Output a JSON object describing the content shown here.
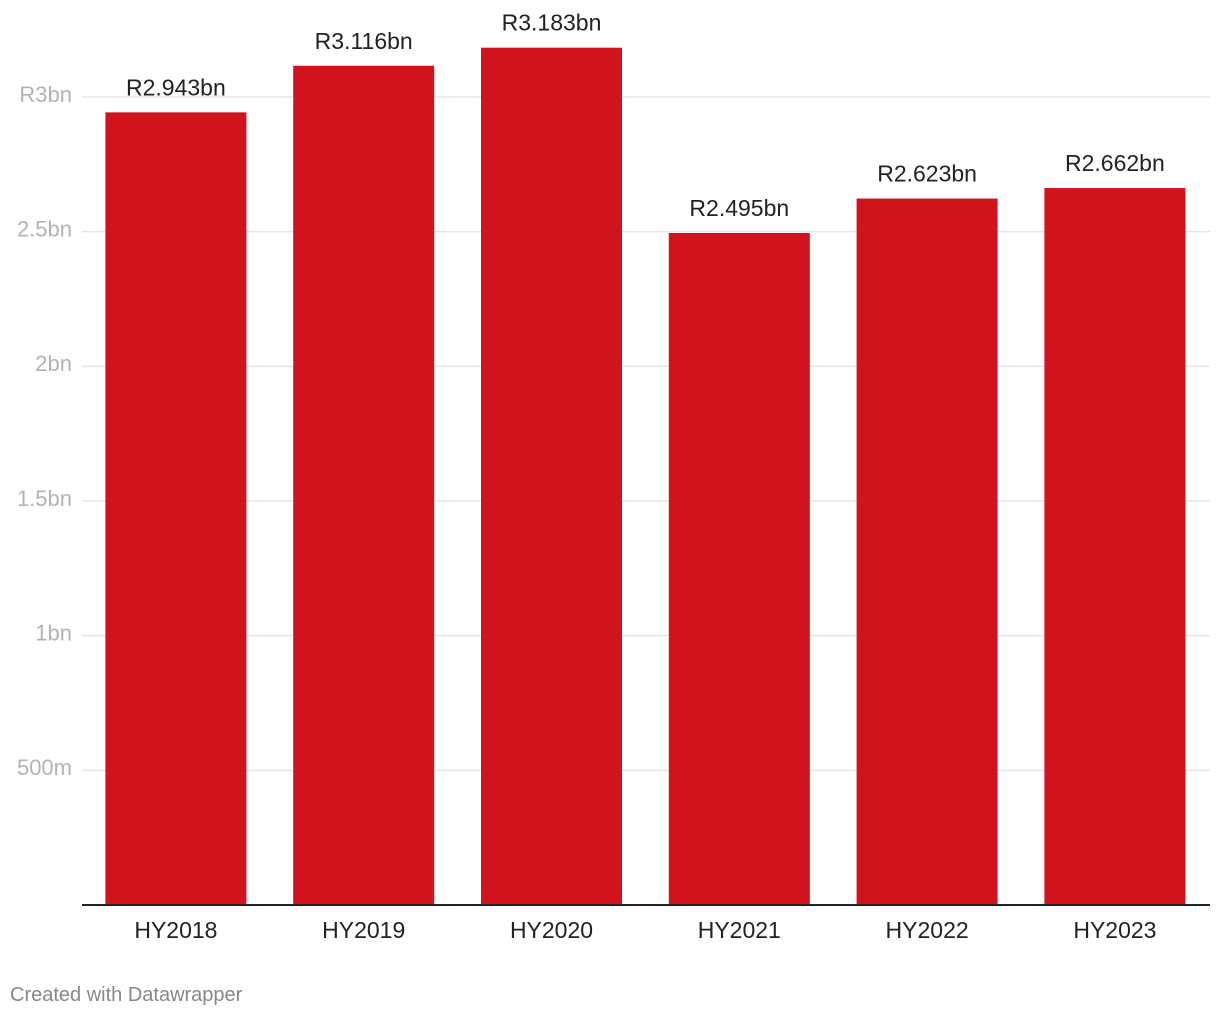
{
  "chart_data": {
    "type": "bar",
    "categories": [
      "HY2018",
      "HY2019",
      "HY2020",
      "HY2021",
      "HY2022",
      "HY2023"
    ],
    "values": [
      2943000000,
      3116000000,
      3183000000,
      2495000000,
      2623000000,
      2662000000
    ],
    "data_labels": [
      "R2.943bn",
      "R3.116bn",
      "R3.183bn",
      "R2.495bn",
      "R2.623bn",
      "R2.662bn"
    ],
    "y_ticks": [
      500000000,
      1000000000,
      1500000000,
      2000000000,
      2500000000,
      3000000000
    ],
    "y_tick_labels": [
      "500m",
      "1bn",
      "1.5bn",
      "2bn",
      "2.5bn",
      "R3bn"
    ],
    "ylim": [
      0,
      3000000000
    ],
    "grid": true,
    "legend": "none",
    "bar_color": "#d0131c",
    "grid_color": "#e5e5e5",
    "axis_color": "#222222"
  },
  "footer": {
    "credit": "Created with Datawrapper"
  }
}
